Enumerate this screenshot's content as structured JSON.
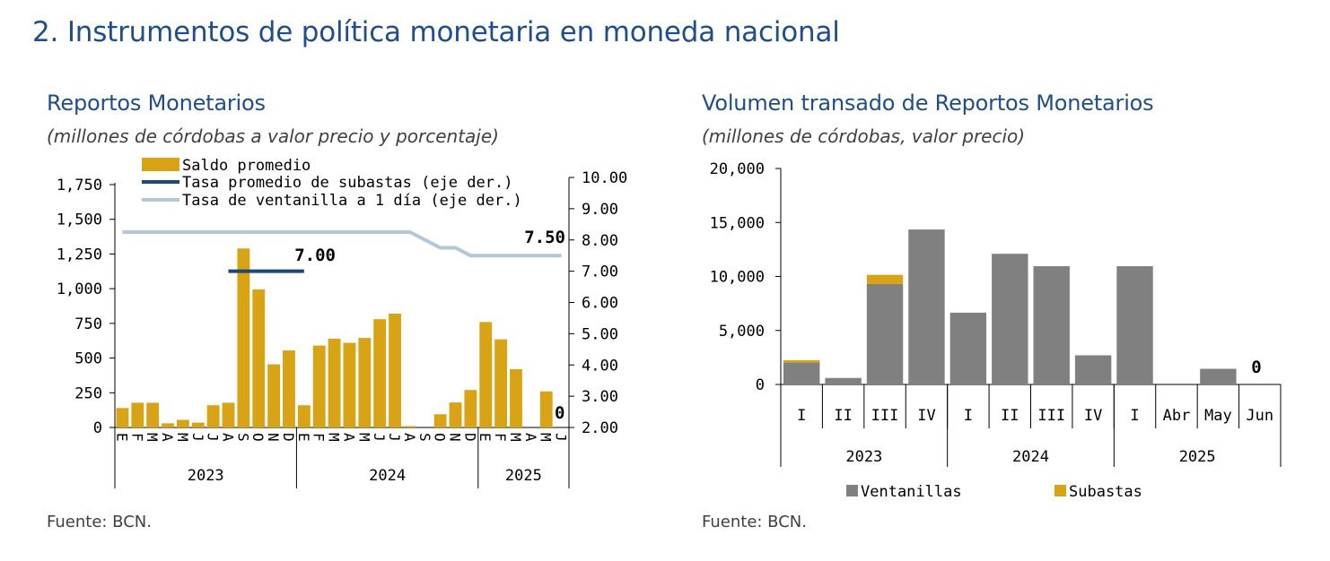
{
  "page_title": "2.  Instrumentos de política monetaria en moneda nacional",
  "source_left": "Fuente: BCN.",
  "source_right": "Fuente: BCN.",
  "colors": {
    "title": "#1f4e8a",
    "saldo": "#d9a316",
    "subastas_line": "#1a4a7a",
    "ventanilla_line": "#b3c7da",
    "ventanillas": "#808080",
    "subastas_bar": "#d9a316"
  },
  "chart_data": [
    {
      "type": "bar",
      "title": "Reportos Monetarios",
      "subtitle": "(millones de córdobas a valor precio y porcentaje)",
      "categories": [
        "E",
        "F",
        "M",
        "A",
        "M",
        "J",
        "J",
        "A",
        "S",
        "O",
        "N",
        "D",
        "E",
        "F",
        "M",
        "A",
        "M",
        "J",
        "J",
        "A",
        "S",
        "O",
        "N",
        "D",
        "E",
        "F",
        "M",
        "A",
        "M",
        "J"
      ],
      "years": [
        {
          "label": "2023",
          "start": 0,
          "end": 11
        },
        {
          "label": "2024",
          "start": 12,
          "end": 23
        },
        {
          "label": "2025",
          "start": 24,
          "end": 29
        }
      ],
      "series": [
        {
          "name": "Saldo promedio",
          "axis": "left",
          "values": [
            140,
            178,
            178,
            30,
            55,
            35,
            160,
            178,
            1290,
            995,
            455,
            555,
            160,
            590,
            640,
            610,
            645,
            780,
            820,
            10,
            0,
            95,
            180,
            270,
            760,
            635,
            420,
            0,
            260,
            0
          ]
        },
        {
          "name": "Tasa promedio de subastas (eje der.)",
          "axis": "right",
          "values": [
            null,
            null,
            null,
            null,
            null,
            null,
            null,
            7.0,
            7.0,
            7.0,
            7.0,
            7.0,
            7.0,
            null,
            null,
            null,
            null,
            null,
            null,
            null,
            null,
            null,
            null,
            null,
            null,
            null,
            null,
            null,
            null,
            null
          ]
        },
        {
          "name": "Tasa de ventanilla a 1 día (eje der.)",
          "axis": "right",
          "values": [
            8.25,
            8.25,
            8.25,
            8.25,
            8.25,
            8.25,
            8.25,
            8.25,
            8.25,
            8.25,
            8.25,
            8.25,
            8.25,
            8.25,
            8.25,
            8.25,
            8.25,
            8.25,
            8.25,
            8.25,
            8.0,
            7.75,
            7.75,
            7.5,
            7.5,
            7.5,
            7.5,
            7.5,
            7.5,
            7.5
          ]
        }
      ],
      "left_axis": {
        "ylim": [
          0,
          1750
        ],
        "ticks": [
          "0",
          "250",
          "500",
          "750",
          "1,000",
          "1,250",
          "1,500",
          "1,750"
        ]
      },
      "right_axis": {
        "ylim": [
          2.0,
          10.0
        ],
        "ticks": [
          "2.00",
          "3.00",
          "4.00",
          "5.00",
          "6.00",
          "7.00",
          "8.00",
          "9.00",
          "10.00"
        ]
      },
      "annotations": {
        "subastas_rate": "7.00",
        "ventanilla_rate": "7.50",
        "last_value": "0"
      },
      "legend_position": "top"
    },
    {
      "type": "bar",
      "title": "Volumen transado de Reportos Monetarios",
      "subtitle": "(millones de córdobas, valor precio)",
      "categories": [
        "I",
        "II",
        "III",
        "IV",
        "I",
        "II",
        "III",
        "IV",
        "I",
        "Abr",
        "May",
        "Jun"
      ],
      "groups": [
        {
          "label": "2023",
          "start": 0,
          "end": 3
        },
        {
          "label": "2024",
          "start": 4,
          "end": 7
        },
        {
          "label": "2025",
          "start": 8,
          "end": 11
        }
      ],
      "series": [
        {
          "name": "Ventanillas",
          "values": [
            2050,
            600,
            9300,
            14350,
            6650,
            12100,
            10950,
            2700,
            10950,
            0,
            1450,
            0
          ]
        },
        {
          "name": "Subastas",
          "values": [
            200,
            0,
            850,
            0,
            0,
            0,
            0,
            0,
            0,
            0,
            0,
            0
          ]
        }
      ],
      "ylim": [
        0,
        20000
      ],
      "yticks": [
        "0",
        "5,000",
        "10,000",
        "15,000",
        "20,000"
      ],
      "annotations": {
        "last_value": "0"
      },
      "legend_position": "bottom",
      "stacked": true
    }
  ]
}
